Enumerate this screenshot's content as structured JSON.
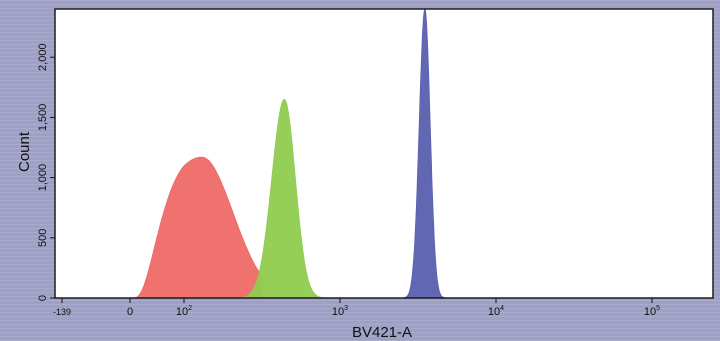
{
  "chart_data": {
    "type": "area",
    "title": "",
    "xlabel": "BV421-A",
    "ylabel": "Count",
    "x_scale": "biexponential",
    "ylim": [
      0,
      2400
    ],
    "x_ticks": [
      {
        "label": "-139",
        "value": -139
      },
      {
        "label": "0",
        "value": 0
      },
      {
        "label": "10",
        "sup": "2",
        "value": 100
      },
      {
        "label": "10",
        "sup": "3",
        "value": 1000
      },
      {
        "label": "10",
        "sup": "4",
        "value": 10000
      },
      {
        "label": "10",
        "sup": "5",
        "value": 100000
      }
    ],
    "y_ticks": [
      {
        "label": "0",
        "value": 0
      },
      {
        "label": "500",
        "value": 500
      },
      {
        "label": "1,000",
        "value": 1000
      },
      {
        "label": "1,500",
        "value": 1500
      },
      {
        "label": "2,000",
        "value": 2000
      }
    ],
    "series": [
      {
        "color": "#ee6a66",
        "peak_x": 130,
        "peak_count": 1170,
        "sigma_left": 0.32,
        "sigma_right": 0.2,
        "x_min": 2,
        "x_max": 320
      },
      {
        "color": "#8fcc4f",
        "peak_x": 440,
        "peak_count": 1650,
        "sigma_left": 0.08,
        "sigma_right": 0.07,
        "x_min": 220,
        "x_max": 840
      },
      {
        "color": "#5a5fb0",
        "peak_x": 3500,
        "peak_count": 2400,
        "sigma_left": 0.036,
        "sigma_right": 0.034,
        "x_min": 2300,
        "x_max": 6200
      }
    ],
    "grid": false,
    "legend": "none"
  }
}
